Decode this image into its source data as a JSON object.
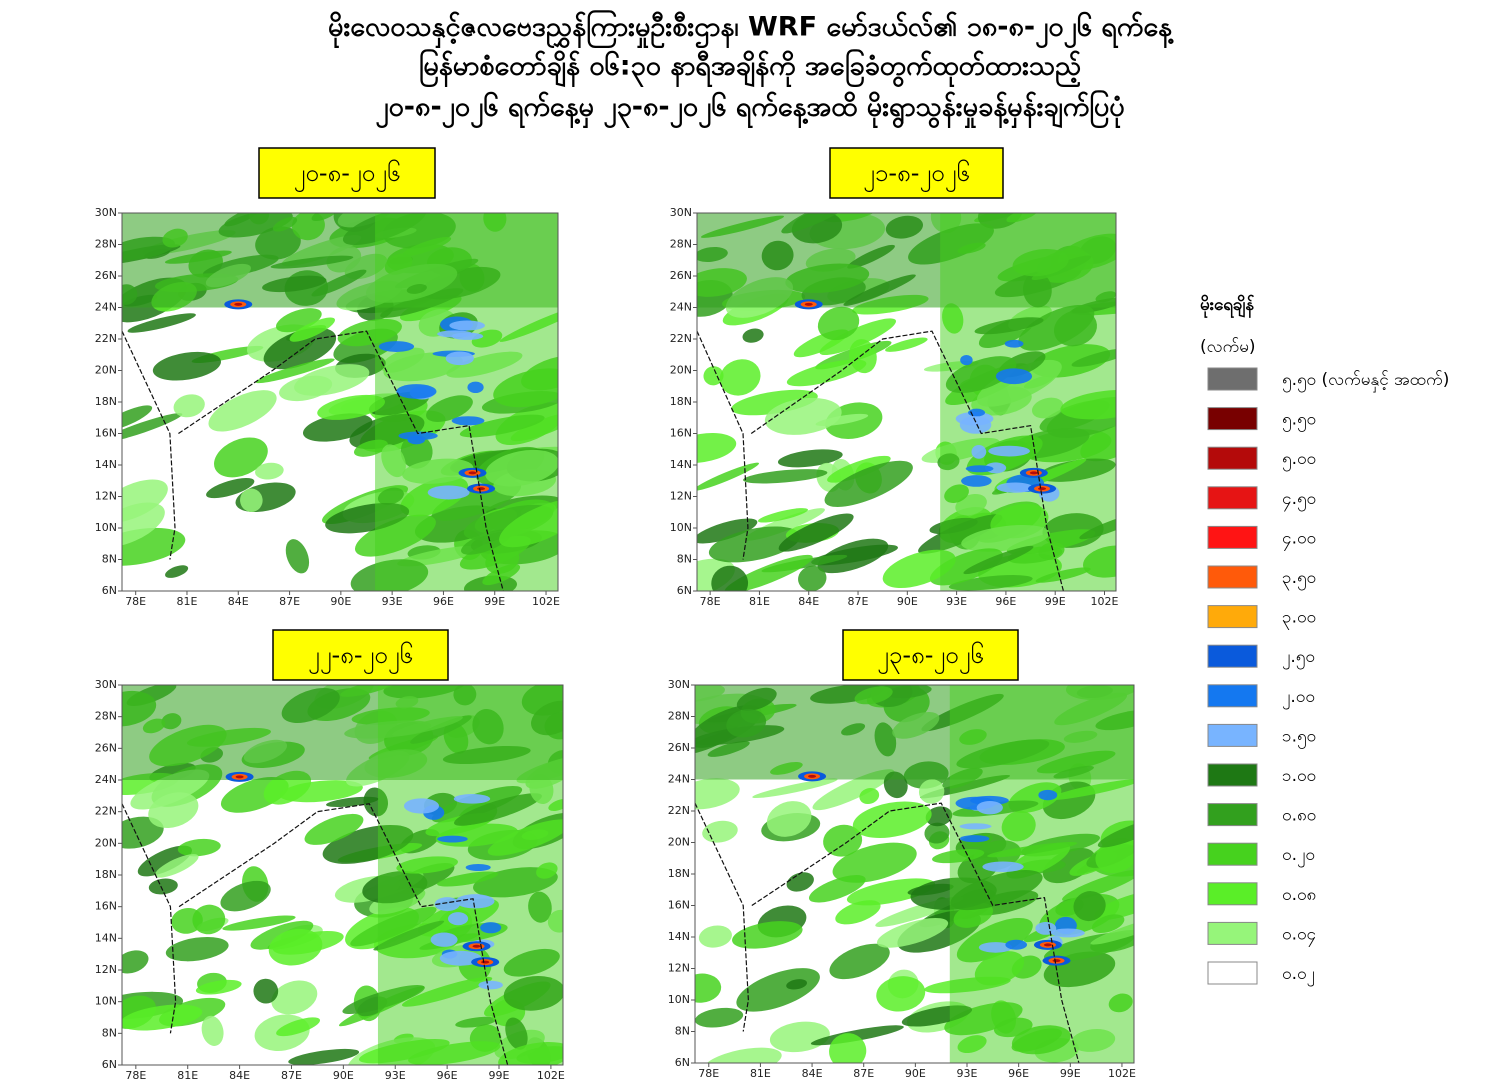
{
  "title_lines": [
    "မိုးလေဝသနှင့်ဇလဗေဒညွှန်ကြားမှုဦးစီးဌာန၊ WRF မော်ဒယ်လ်၏ ၁၈-၈-၂၀၂၆ ရက်နေ့",
    "မြန်မာစံတော်ချိန် ၀၆:၃၀ နာရီအချိန်ကို အခြေခံတွက်ထုတ်ထားသည့်",
    "၂၀-၈-၂၀၂၆ ရက်နေ့မှ ၂၃-၈-၂၀၂၆ ရက်နေ့အထိ မိုးရွာသွန်းမှုခန့်မှန်းချက်ပြပုံ"
  ],
  "maps": [
    {
      "date": "၂၀-၈-၂၀၂၆"
    },
    {
      "date": "၂၁-၈-၂၀၂၆"
    },
    {
      "date": "၂၂-၈-၂၀၂၆"
    },
    {
      "date": "၂၃-၈-၂၀၂၆"
    }
  ],
  "axes": {
    "xlim": [
      77.2,
      102.7
    ],
    "ylim": [
      6,
      30
    ],
    "xticks": [
      {
        "value": 78,
        "label": "78E"
      },
      {
        "value": 81,
        "label": "81E"
      },
      {
        "value": 84,
        "label": "84E"
      },
      {
        "value": 87,
        "label": "87E"
      },
      {
        "value": 90,
        "label": "90E"
      },
      {
        "value": 93,
        "label": "93E"
      },
      {
        "value": 96,
        "label": "96E"
      },
      {
        "value": 99,
        "label": "99E"
      },
      {
        "value": 102,
        "label": "102E"
      }
    ],
    "yticks": [
      {
        "value": 6,
        "label": "6N"
      },
      {
        "value": 8,
        "label": "8N"
      },
      {
        "value": 10,
        "label": "10N"
      },
      {
        "value": 12,
        "label": "12N"
      },
      {
        "value": 14,
        "label": "14N"
      },
      {
        "value": 16,
        "label": "16N"
      },
      {
        "value": 18,
        "label": "18N"
      },
      {
        "value": 20,
        "label": "20N"
      },
      {
        "value": 22,
        "label": "22N"
      },
      {
        "value": 24,
        "label": "24N"
      },
      {
        "value": 26,
        "label": "26N"
      },
      {
        "value": 28,
        "label": "28N"
      },
      {
        "value": 30,
        "label": "30N"
      }
    ]
  },
  "legend": {
    "title": "မိုးရေချိန်",
    "unit": "(လက်မ)",
    "items": [
      {
        "label": "၅.၅၀ (လက်မနှင့် အထက်)",
        "color": "#6e6e6e"
      },
      {
        "label": "၅.၅၀",
        "color": "#780000"
      },
      {
        "label": "၅.၀၀",
        "color": "#b40a0a"
      },
      {
        "label": "၄.၅၀",
        "color": "#e61414"
      },
      {
        "label": "၄.၀၀",
        "color": "#ff1414"
      },
      {
        "label": "၃.၅၀",
        "color": "#ff5a0a"
      },
      {
        "label": "၃.၀၀",
        "color": "#ffaa0a"
      },
      {
        "label": "၂.၅၀",
        "color": "#0a5adc"
      },
      {
        "label": "၂.၀၀",
        "color": "#1478f0"
      },
      {
        "label": "၁.၅၀",
        "color": "#78b4ff"
      },
      {
        "label": "၁.၀၀",
        "color": "#1e7814"
      },
      {
        "label": "၀.၈၀",
        "color": "#32a01e"
      },
      {
        "label": "၀.၂၀",
        "color": "#46d21e"
      },
      {
        "label": "၀.၀၈",
        "color": "#5aee28"
      },
      {
        "label": "၀.၀၄",
        "color": "#96f57a"
      },
      {
        "label": "၀.၀၂",
        "color": "#ffffff"
      }
    ]
  }
}
